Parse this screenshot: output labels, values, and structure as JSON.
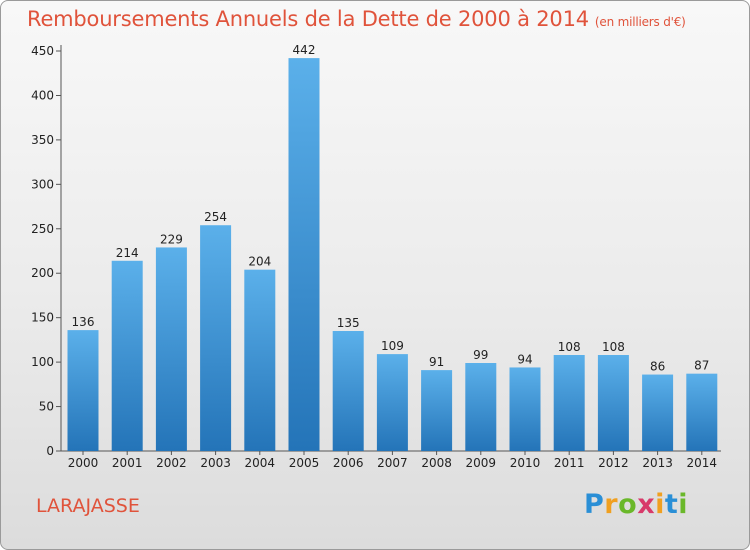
{
  "title": "Remboursements Annuels de la Dette de 2000 à 2014",
  "subtitle": "(en milliers d'€)",
  "commune": "LARAJASSE",
  "logo": {
    "letters": [
      "P",
      "r",
      "o",
      "x",
      "i",
      "t",
      "i"
    ],
    "colors": [
      "#2a8fd6",
      "#f0a020",
      "#6ab82a",
      "#d83a6a",
      "#f0a020",
      "#2a8fd6",
      "#6ab82a"
    ]
  },
  "colors": {
    "bar_top": "#5bb0ea",
    "bar_bottom": "#2474b8",
    "title": "#e0533b"
  },
  "chart_data": {
    "type": "bar",
    "categories": [
      "2000",
      "2001",
      "2002",
      "2003",
      "2004",
      "2005",
      "2006",
      "2007",
      "2008",
      "2009",
      "2010",
      "2011",
      "2012",
      "2013",
      "2014"
    ],
    "values": [
      136,
      214,
      229,
      254,
      204,
      442,
      135,
      109,
      91,
      99,
      94,
      108,
      108,
      86,
      87
    ],
    "ylim": [
      0,
      450
    ],
    "yticks": [
      0,
      50,
      100,
      150,
      200,
      250,
      300,
      350,
      400,
      450
    ],
    "grid": false
  }
}
